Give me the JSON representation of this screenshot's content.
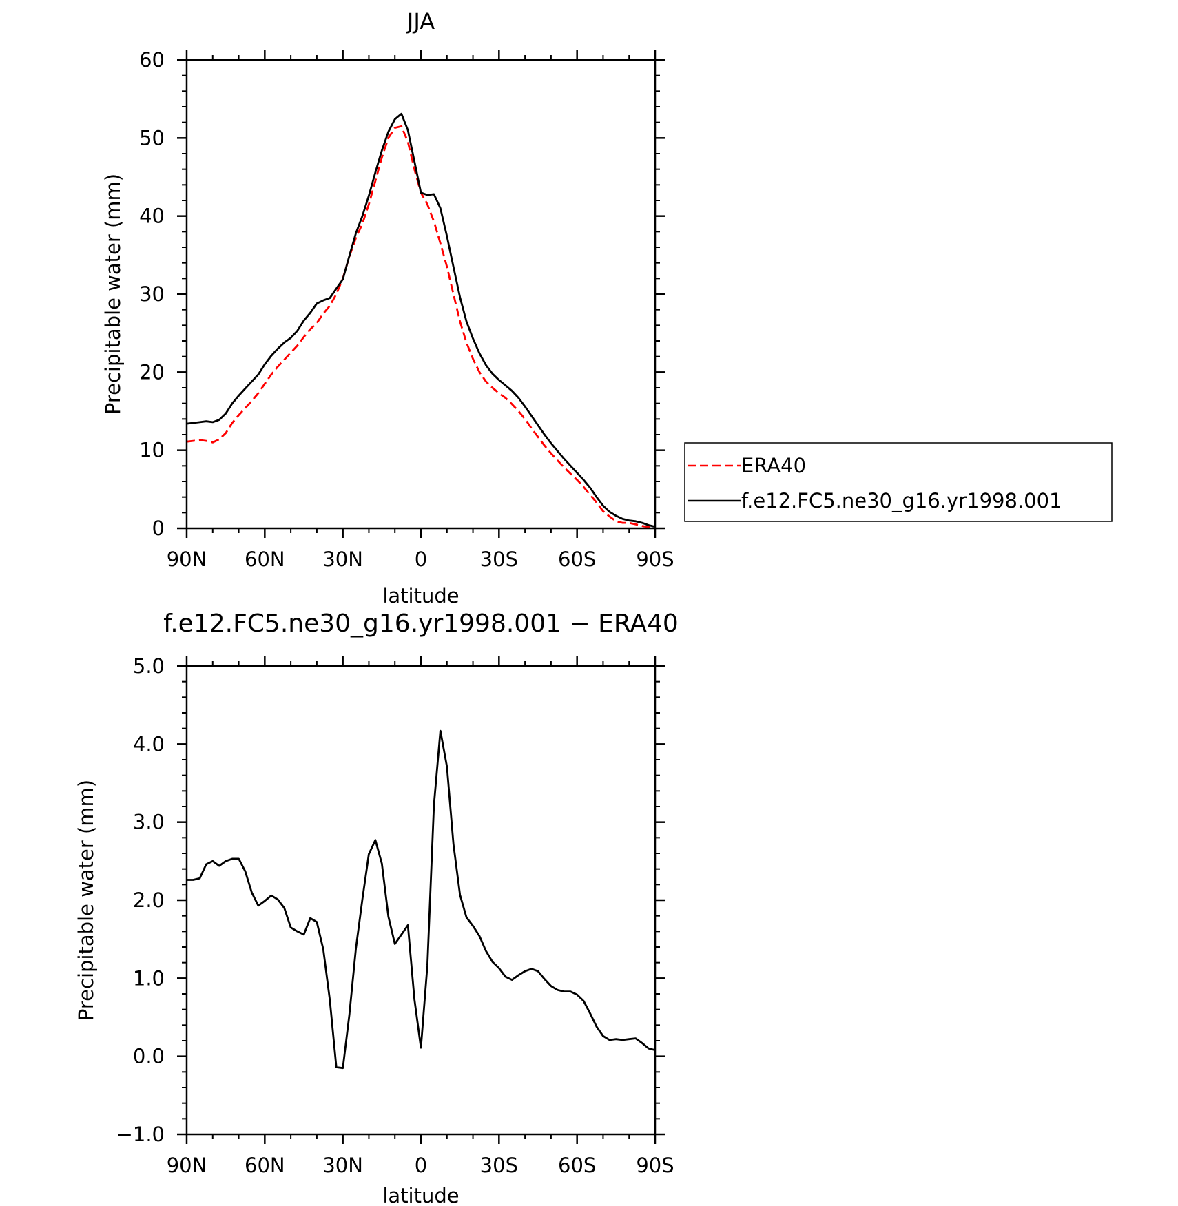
{
  "chart_data": [
    {
      "type": "line",
      "title": "JJA",
      "xlabel": "latitude",
      "ylabel": "Precipitable water (mm)",
      "xlim": [
        90,
        -90
      ],
      "ylim": [
        0,
        60
      ],
      "x_ticks": [
        {
          "value": 90,
          "label": "90N"
        },
        {
          "value": 60,
          "label": "60N"
        },
        {
          "value": 30,
          "label": "30N"
        },
        {
          "value": 0,
          "label": "0"
        },
        {
          "value": -30,
          "label": "30S"
        },
        {
          "value": -60,
          "label": "60S"
        },
        {
          "value": -90,
          "label": "90S"
        }
      ],
      "y_ticks": [
        {
          "value": 0,
          "label": "0"
        },
        {
          "value": 10,
          "label": "10"
        },
        {
          "value": 20,
          "label": "20"
        },
        {
          "value": 30,
          "label": "30"
        },
        {
          "value": 40,
          "label": "40"
        },
        {
          "value": 50,
          "label": "50"
        },
        {
          "value": 60,
          "label": "60"
        }
      ],
      "legend_position": "right",
      "series": [
        {
          "name": "ERA40",
          "color": "#ff0000",
          "dash": "dashed",
          "x": [
            90,
            87.5,
            85,
            82.5,
            80,
            77.5,
            75,
            72.5,
            70,
            67.5,
            65,
            62.5,
            60,
            57.5,
            55,
            52.5,
            50,
            47.5,
            45,
            42.5,
            40,
            37.5,
            35,
            32.5,
            30,
            27.5,
            25,
            22.5,
            20,
            17.5,
            15,
            12.5,
            10,
            7.5,
            5,
            2.5,
            0,
            -2.5,
            -5,
            -7.5,
            -10,
            -12.5,
            -15,
            -17.5,
            -20,
            -22.5,
            -25,
            -27.5,
            -30,
            -32.5,
            -35,
            -37.5,
            -40,
            -42.5,
            -45,
            -47.5,
            -50,
            -52.5,
            -55,
            -57.5,
            -60,
            -62.5,
            -65,
            -67.5,
            -70,
            -72.5,
            -75,
            -77.5,
            -80,
            -82.5,
            -85,
            -87.5,
            -90
          ],
          "y": [
            11.1,
            11.2,
            11.3,
            11.2,
            11.0,
            11.4,
            12.2,
            13.5,
            14.5,
            15.4,
            16.3,
            17.3,
            18.5,
            19.7,
            20.7,
            21.6,
            22.5,
            23.4,
            24.5,
            25.5,
            26.3,
            27.5,
            28.5,
            30.0,
            32.0,
            34.8,
            37.2,
            39.0,
            41.5,
            44.5,
            47.5,
            50.0,
            51.3,
            51.5,
            49.5,
            46.0,
            43.0,
            41.5,
            39.3,
            36.5,
            33.5,
            30.0,
            26.5,
            23.8,
            21.7,
            20.0,
            18.8,
            18.0,
            17.3,
            16.7,
            15.9,
            15.0,
            14.0,
            12.8,
            11.7,
            10.6,
            9.6,
            8.7,
            7.8,
            7.0,
            6.2,
            5.3,
            4.3,
            3.3,
            2.2,
            1.5,
            0.9,
            0.7,
            0.7,
            0.5,
            0.3,
            0.15,
            0.1
          ]
        },
        {
          "name": "f.e12.FC5.ne30_g16.yr1998.001",
          "color": "#000000",
          "dash": "solid",
          "x": [
            90,
            87.5,
            85,
            82.5,
            80,
            77.5,
            75,
            72.5,
            70,
            67.5,
            65,
            62.5,
            60,
            57.5,
            55,
            52.5,
            50,
            47.5,
            45,
            42.5,
            40,
            37.5,
            35,
            32.5,
            30,
            27.5,
            25,
            22.5,
            20,
            17.5,
            15,
            12.5,
            10,
            7.5,
            5,
            2.5,
            0,
            -2.5,
            -5,
            -7.5,
            -10,
            -12.5,
            -15,
            -17.5,
            -20,
            -22.5,
            -25,
            -27.5,
            -30,
            -32.5,
            -35,
            -37.5,
            -40,
            -42.5,
            -45,
            -47.5,
            -50,
            -52.5,
            -55,
            -57.5,
            -60,
            -62.5,
            -65,
            -67.5,
            -70,
            -72.5,
            -75,
            -77.5,
            -80,
            -82.5,
            -85,
            -87.5,
            -90
          ],
          "y": [
            13.4,
            13.5,
            13.6,
            13.7,
            13.6,
            13.9,
            14.7,
            16.0,
            17.0,
            17.9,
            18.8,
            19.7,
            21.0,
            22.1,
            23.0,
            23.8,
            24.4,
            25.3,
            26.6,
            27.6,
            28.8,
            29.2,
            29.5,
            30.7,
            31.9,
            34.9,
            37.8,
            40.0,
            42.6,
            45.6,
            48.4,
            50.8,
            52.4,
            53.1,
            51.0,
            47.0,
            43.0,
            42.7,
            42.8,
            41.0,
            37.4,
            33.5,
            29.6,
            26.5,
            24.3,
            22.4,
            20.9,
            19.8,
            19.0,
            18.3,
            17.6,
            16.7,
            15.6,
            14.4,
            13.2,
            12.0,
            10.9,
            9.9,
            8.9,
            8.0,
            7.1,
            6.2,
            5.2,
            4.0,
            2.9,
            2.1,
            1.6,
            1.2,
            1.0,
            0.9,
            0.7,
            0.4,
            0.2
          ]
        }
      ]
    },
    {
      "type": "line",
      "title": "f.e12.FC5.ne30_g16.yr1998.001 − ERA40",
      "xlabel": "latitude",
      "ylabel": "Precipitable water (mm)",
      "xlim": [
        90,
        -90
      ],
      "ylim": [
        -1.0,
        5.0
      ],
      "x_ticks": [
        {
          "value": 90,
          "label": "90N"
        },
        {
          "value": 60,
          "label": "60N"
        },
        {
          "value": 30,
          "label": "30N"
        },
        {
          "value": 0,
          "label": "0"
        },
        {
          "value": -30,
          "label": "30S"
        },
        {
          "value": -60,
          "label": "60S"
        },
        {
          "value": -90,
          "label": "90S"
        }
      ],
      "y_ticks": [
        {
          "value": -1.0,
          "label": "−1.0"
        },
        {
          "value": 0.0,
          "label": "0.0"
        },
        {
          "value": 1.0,
          "label": "1.0"
        },
        {
          "value": 2.0,
          "label": "2.0"
        },
        {
          "value": 3.0,
          "label": "3.0"
        },
        {
          "value": 4.0,
          "label": "4.0"
        },
        {
          "value": 5.0,
          "label": "5.0"
        }
      ],
      "series": [
        {
          "color": "#000000",
          "dash": "solid",
          "x": [
            90,
            87.5,
            85,
            82.5,
            80,
            77.5,
            75,
            72.5,
            70,
            67.5,
            65,
            62.5,
            60,
            57.5,
            55,
            52.5,
            50,
            47.5,
            45,
            42.5,
            40,
            37.5,
            35,
            32.5,
            30,
            27.5,
            25,
            22.5,
            20,
            17.5,
            15,
            12.5,
            10,
            7.5,
            5,
            2.5,
            0,
            -2.5,
            -5,
            -7.5,
            -10,
            -12.5,
            -15,
            -17.5,
            -20,
            -22.5,
            -25,
            -27.5,
            -30,
            -32.5,
            -35,
            -37.5,
            -40,
            -42.5,
            -45,
            -47.5,
            -50,
            -52.5,
            -55,
            -57.5,
            -60,
            -62.5,
            -65,
            -67.5,
            -70,
            -72.5,
            -75,
            -77.5,
            -80,
            -82.5,
            -85,
            -87.5,
            -90
          ],
          "y": [
            2.26,
            2.26,
            2.28,
            2.46,
            2.5,
            2.44,
            2.5,
            2.53,
            2.53,
            2.37,
            2.1,
            1.93,
            1.99,
            2.06,
            2.01,
            1.9,
            1.65,
            1.6,
            1.56,
            1.77,
            1.72,
            1.37,
            0.72,
            -0.14,
            -0.15,
            0.53,
            1.38,
            2.01,
            2.59,
            2.77,
            2.47,
            1.79,
            1.44,
            1.56,
            1.68,
            0.73,
            0.11,
            1.17,
            3.22,
            4.17,
            3.71,
            2.72,
            2.07,
            1.78,
            1.67,
            1.54,
            1.35,
            1.21,
            1.13,
            1.02,
            0.98,
            1.04,
            1.09,
            1.12,
            1.09,
            0.99,
            0.9,
            0.85,
            0.83,
            0.83,
            0.79,
            0.71,
            0.55,
            0.38,
            0.26,
            0.21,
            0.22,
            0.21,
            0.22,
            0.23,
            0.17,
            0.1,
            0.08
          ]
        }
      ]
    }
  ]
}
